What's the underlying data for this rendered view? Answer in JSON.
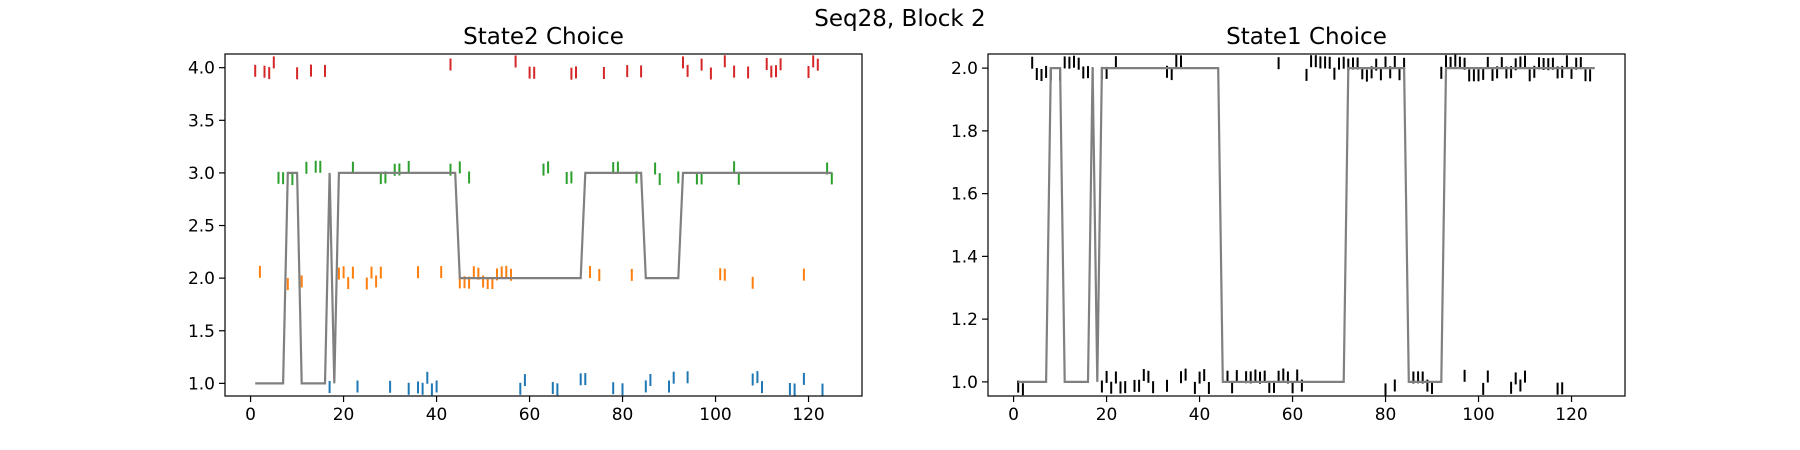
{
  "figure": {
    "suptitle": "Seq28, Block 2"
  },
  "chart_data": [
    {
      "type": "scatter",
      "title": "State2 Choice",
      "xlabel": "",
      "ylabel": "",
      "xlim": [
        -5.5,
        131.5
      ],
      "ylim": [
        0.88,
        4.13
      ],
      "xticks": [
        0,
        20,
        40,
        60,
        80,
        100,
        120
      ],
      "yticks": [
        1.0,
        1.5,
        2.0,
        2.5,
        3.0,
        3.5,
        4.0
      ],
      "ytick_labels": [
        "1.0",
        "1.5",
        "2.0",
        "2.5",
        "3.0",
        "3.5",
        "4.0"
      ],
      "grid": false,
      "legend": "none",
      "marker": "vertical tick",
      "series": [
        {
          "color": "#1f77b4",
          "level": 1.0,
          "x": [
            17,
            23,
            30,
            34,
            36,
            37,
            38,
            39,
            40,
            58,
            59,
            65,
            66,
            71,
            72,
            78,
            80,
            85,
            86,
            90,
            91,
            94,
            108,
            109,
            110,
            116,
            117,
            119,
            123
          ]
        },
        {
          "color": "#ff7f0e",
          "level": 2.0,
          "x": [
            2,
            8,
            11,
            19,
            20,
            21,
            22,
            25,
            26,
            27,
            28,
            36,
            41,
            45,
            46,
            47,
            48,
            49,
            50,
            51,
            52,
            53,
            54,
            55,
            56,
            73,
            75,
            82,
            101,
            102,
            108,
            119
          ]
        },
        {
          "color": "#2ca02c",
          "level": 3.0,
          "x": [
            6,
            7,
            9,
            12,
            14,
            15,
            22,
            28,
            29,
            31,
            32,
            34,
            43,
            45,
            47,
            63,
            64,
            68,
            69,
            78,
            79,
            83,
            87,
            88,
            92,
            96,
            97,
            104,
            105,
            124,
            125
          ]
        },
        {
          "color": "#d62728",
          "level": 4.0,
          "x": [
            1,
            3,
            4,
            5,
            10,
            13,
            16,
            43,
            57,
            60,
            61,
            69,
            70,
            76,
            81,
            84,
            93,
            94,
            97,
            99,
            102,
            104,
            107,
            111,
            112,
            113,
            114,
            120,
            121,
            122
          ]
        },
        {
          "name": "",
          "color": "#808080",
          "style": "line",
          "x": [
            1,
            7,
            8,
            10,
            11,
            16,
            17,
            18,
            19,
            44,
            45,
            71,
            72,
            84,
            85,
            92,
            93,
            125
          ],
          "y": [
            1,
            1,
            3,
            3,
            1,
            1,
            3,
            1,
            3,
            3,
            2,
            2,
            3,
            3,
            2,
            2,
            3,
            3
          ]
        }
      ]
    },
    {
      "type": "scatter",
      "title": "State1 Choice",
      "xlabel": "",
      "ylabel": "",
      "xlim": [
        -5.5,
        131.5
      ],
      "ylim": [
        0.955,
        2.045
      ],
      "xticks": [
        0,
        20,
        40,
        60,
        80,
        100,
        120
      ],
      "yticks": [
        1.0,
        1.2,
        1.4,
        1.6,
        1.8,
        2.0
      ],
      "ytick_labels": [
        "1.0",
        "1.2",
        "1.4",
        "1.6",
        "1.8",
        "2.0"
      ],
      "grid": false,
      "legend": "none",
      "marker": "vertical tick",
      "series": [
        {
          "color": "#000000",
          "level": 1.0,
          "x": [
            1,
            2,
            19,
            20,
            21,
            22,
            23,
            24,
            26,
            27,
            28,
            29,
            30,
            33,
            36,
            37,
            39,
            40,
            41,
            42,
            46,
            47,
            48,
            50,
            51,
            52,
            53,
            54,
            55,
            56,
            57,
            58,
            59,
            60,
            61,
            62,
            80,
            82,
            86,
            87,
            88,
            89,
            90,
            97,
            101,
            102,
            107,
            108,
            109,
            110,
            117,
            118
          ]
        },
        {
          "color": "#000000",
          "level": 2.0,
          "x": [
            4,
            5,
            6,
            7,
            8,
            10,
            11,
            12,
            13,
            14,
            15,
            16,
            17,
            19,
            20,
            22,
            33,
            34,
            35,
            36,
            57,
            63,
            64,
            65,
            66,
            67,
            68,
            69,
            70,
            71,
            72,
            73,
            74,
            75,
            76,
            77,
            78,
            79,
            80,
            81,
            82,
            83,
            84,
            92,
            93,
            94,
            95,
            96,
            97,
            98,
            99,
            100,
            101,
            102,
            103,
            104,
            105,
            106,
            107,
            108,
            109,
            110,
            111,
            112,
            113,
            114,
            115,
            116,
            117,
            118,
            119,
            120,
            121,
            122,
            123,
            124
          ]
        },
        {
          "name": "",
          "color": "#808080",
          "style": "line",
          "x": [
            1,
            7,
            8,
            10,
            11,
            16,
            17,
            18,
            19,
            44,
            45,
            71,
            72,
            84,
            85,
            92,
            93,
            125
          ],
          "y": [
            1,
            1,
            2,
            2,
            1,
            1,
            2,
            1,
            2,
            2,
            1,
            1,
            2,
            2,
            1,
            1,
            2,
            2
          ]
        }
      ]
    }
  ]
}
